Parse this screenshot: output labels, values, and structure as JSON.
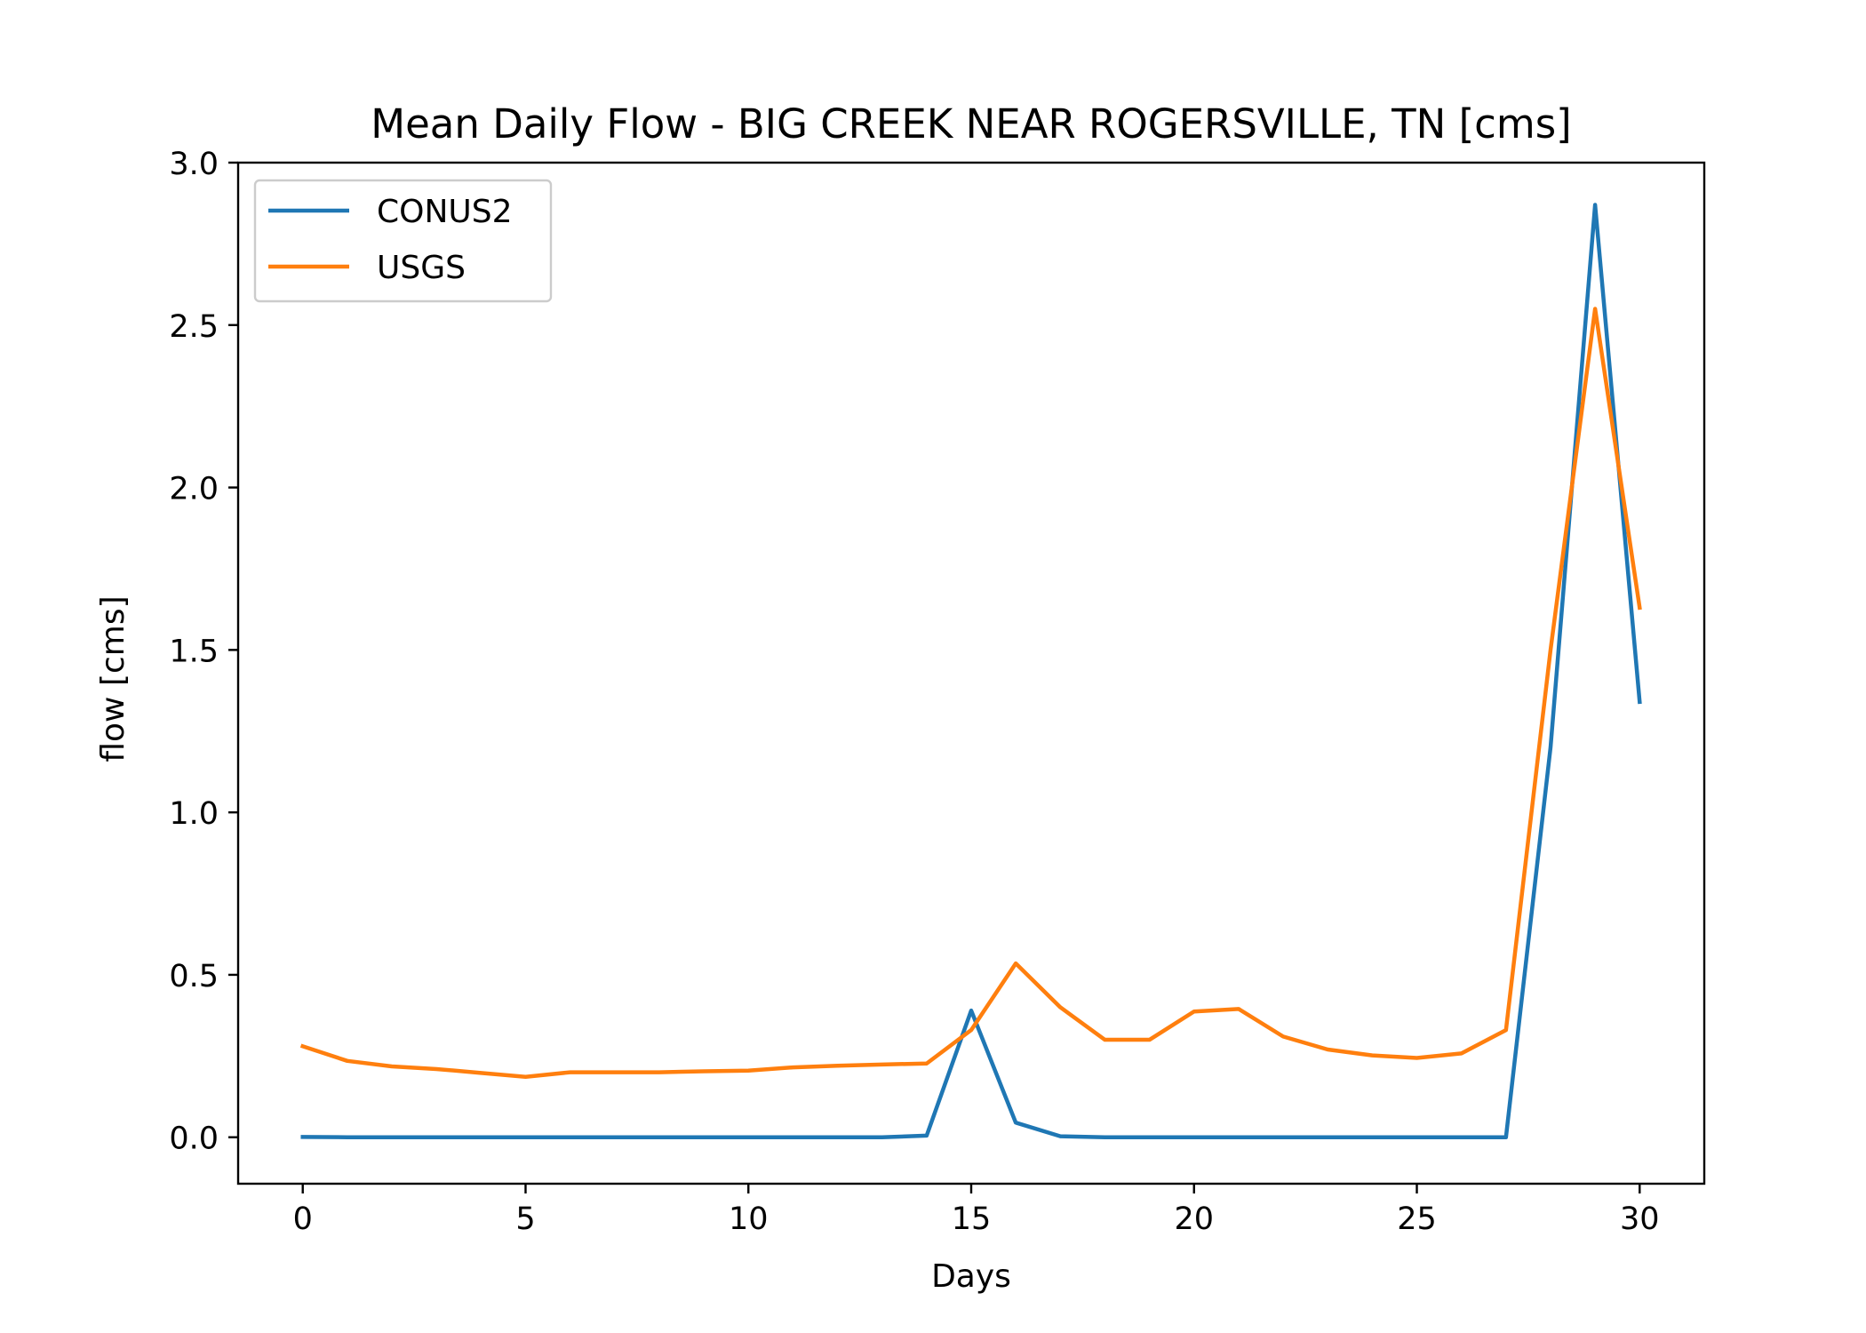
{
  "chart_data": {
    "type": "line",
    "title": "Mean Daily Flow - BIG CREEK NEAR ROGERSVILLE, TN [cms]",
    "xlabel": "Days",
    "ylabel": "flow [cms]",
    "xlim": [
      -1.45,
      31.45
    ],
    "ylim": [
      -0.143,
      3.0
    ],
    "x_ticks": [
      0,
      5,
      10,
      15,
      20,
      25,
      30
    ],
    "x_tick_labels": [
      "0",
      "5",
      "10",
      "15",
      "20",
      "25",
      "30"
    ],
    "y_ticks": [
      0.0,
      0.5,
      1.0,
      1.5,
      2.0,
      2.5,
      3.0
    ],
    "y_tick_labels": [
      "0.0",
      "0.5",
      "1.0",
      "1.5",
      "2.0",
      "2.5",
      "3.0"
    ],
    "grid": false,
    "legend_position": "top-left",
    "x": [
      0,
      1,
      2,
      3,
      4,
      5,
      6,
      7,
      8,
      9,
      10,
      11,
      12,
      13,
      14,
      15,
      16,
      17,
      18,
      19,
      20,
      21,
      22,
      23,
      24,
      25,
      26,
      27,
      28,
      29,
      30
    ],
    "series": [
      {
        "name": "CONUS2",
        "color": "#1f77b4",
        "values": [
          0.001,
          0.0,
          0.0,
          0.0,
          0.0,
          0.0,
          0.0,
          0.0,
          0.0,
          0.0,
          0.0,
          0.0,
          0.0,
          0.0,
          0.005,
          0.39,
          0.045,
          0.003,
          0.0,
          0.0,
          0.0,
          0.0,
          0.0,
          0.0,
          0.0,
          0.0,
          0.0,
          0.0,
          1.2,
          2.87,
          1.34
        ]
      },
      {
        "name": "USGS",
        "color": "#ff7f0e",
        "values": [
          0.28,
          0.235,
          0.218,
          0.21,
          0.198,
          0.186,
          0.2,
          0.2,
          0.2,
          0.203,
          0.205,
          0.215,
          0.22,
          0.224,
          0.227,
          0.33,
          0.535,
          0.4,
          0.3,
          0.3,
          0.387,
          0.395,
          0.31,
          0.27,
          0.252,
          0.244,
          0.258,
          0.33,
          1.5,
          2.55,
          1.63
        ]
      }
    ]
  }
}
